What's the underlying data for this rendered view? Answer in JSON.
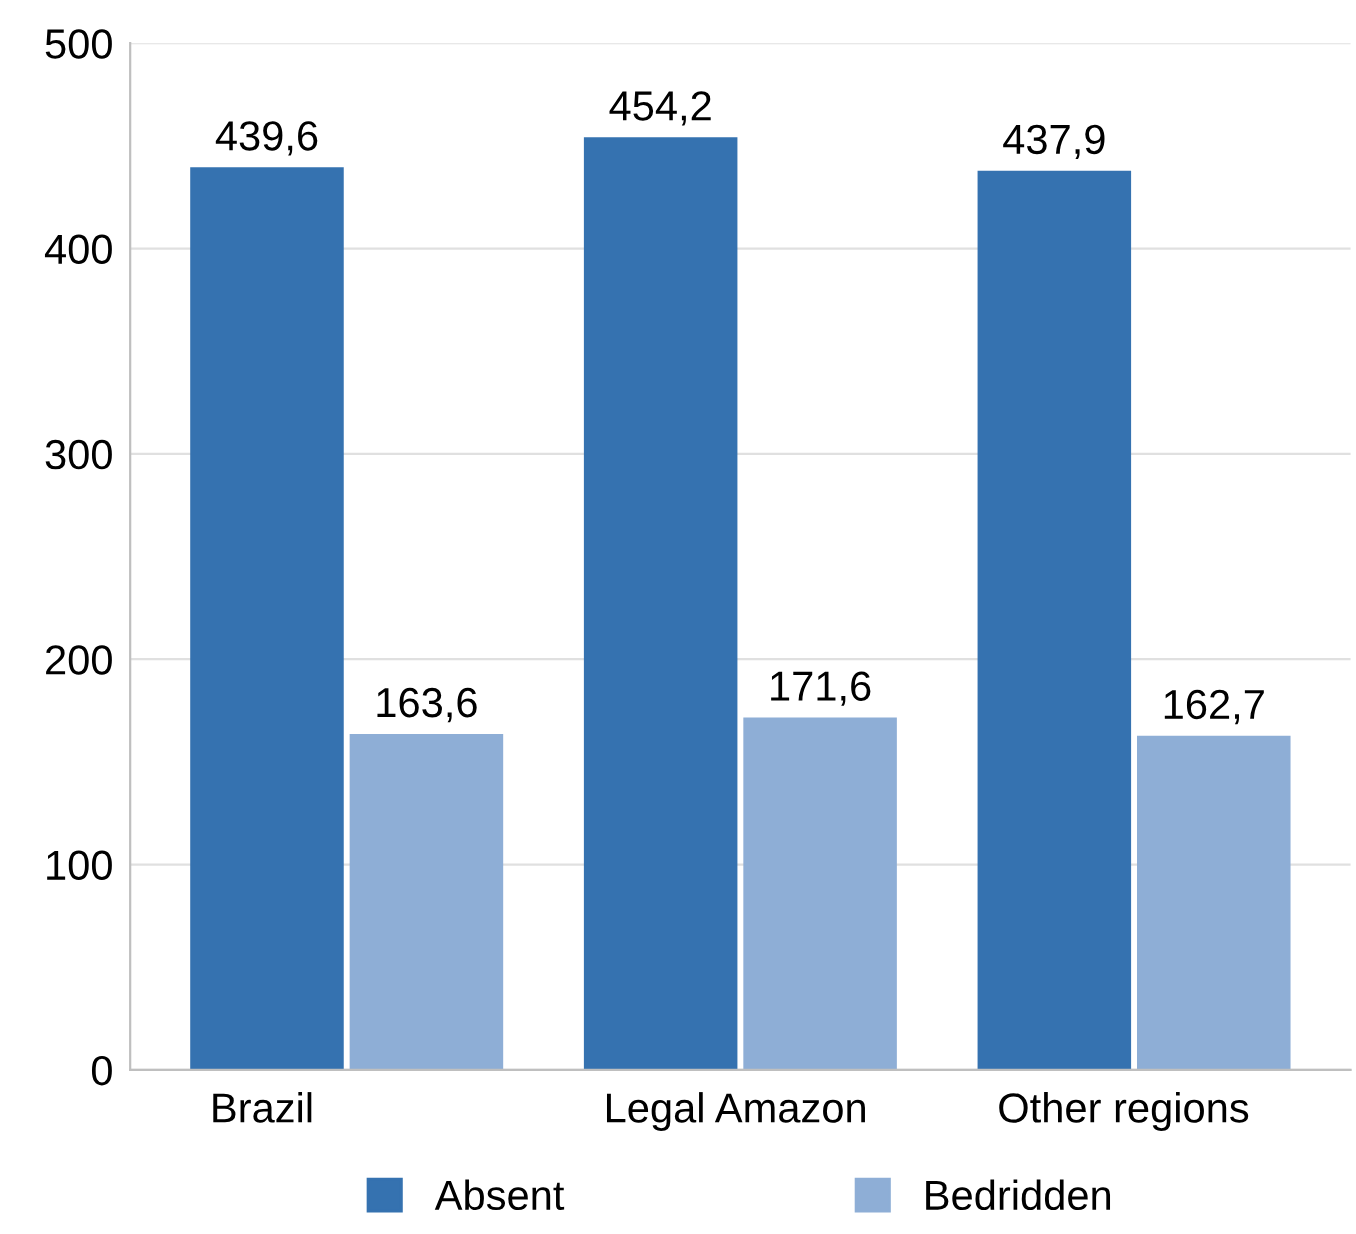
{
  "chart_data": {
    "type": "bar",
    "categories": [
      "Brazil",
      "Legal Amazon",
      "Other regions"
    ],
    "series": [
      {
        "name": "Absent",
        "color": "#3572b0",
        "values": [
          439.6,
          454.2,
          437.9
        ],
        "value_labels": [
          "439,6",
          "454,2",
          "437,9"
        ]
      },
      {
        "name": "Bedridden",
        "color": "#8eaed6",
        "values": [
          163.6,
          171.6,
          162.7
        ],
        "value_labels": [
          "163,6",
          "171,6",
          "162,7"
        ]
      }
    ],
    "ylim": [
      0,
      500
    ],
    "yticks": [
      0,
      100,
      200,
      300,
      400,
      500
    ],
    "grid": "y",
    "legend": "bottom"
  }
}
